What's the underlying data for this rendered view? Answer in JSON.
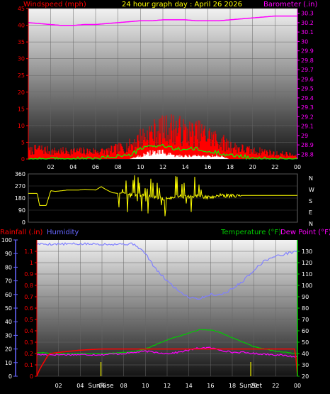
{
  "header": {
    "left_label": "Windspeed (mph)",
    "center_label": "24 hour graph day : April 26 2026",
    "right_label": "Barometer (.in)"
  },
  "direction_labels": [
    "N",
    "W",
    "S",
    "E",
    "N"
  ],
  "bottom_labels": {
    "rainfall": "Rainfall (.in)",
    "humidity": "Humidity",
    "temperature": "Temperature (°F)",
    "dewpoint": "Dew Point (°F)",
    "sunrise": "SunRise",
    "sunset": "SunSet"
  },
  "colors": {
    "wind": "#ff0000",
    "gust": "#ff0000",
    "avg_wind": "#00ff00",
    "barometer": "#ff00ff",
    "direction": "#ffff00",
    "rainfall": "#ff0000",
    "humidity": "#8080ff",
    "temperature": "#00cc00",
    "dewpoint": "#ff00ff",
    "sun_marker": "#c8c800",
    "label_red": "#ff0000",
    "label_yellow": "#ffff00",
    "label_magenta": "#ff00ff",
    "label_blue": "#6666ff",
    "label_green": "#00cc00"
  },
  "chart_data": [
    {
      "type": "line",
      "title": "24 hour graph day : April 26 2026",
      "x_ticks": [
        "02",
        "04",
        "06",
        "08",
        "10",
        "12",
        "14",
        "16",
        "18",
        "20",
        "22",
        "00"
      ],
      "xlim": [
        0,
        24
      ],
      "left_axis": {
        "label": "Windspeed (mph)",
        "ticks": [
          0,
          5,
          10,
          15,
          20,
          25,
          30,
          35,
          40,
          45
        ],
        "ylim": [
          0,
          45
        ]
      },
      "right_axis": {
        "label": "Barometer (.in)",
        "ticks": [
          "28.8",
          "28.9",
          "29",
          "29.1",
          "29.2",
          "29.3",
          "29.4",
          "29.5",
          "29.6",
          "29.7",
          "29.8",
          "29.9",
          "30",
          "30.1",
          "30.2",
          "30.3"
        ],
        "ylim": [
          28.75,
          30.35
        ]
      },
      "series": [
        {
          "name": "Barometer",
          "axis": "right",
          "x": [
            0,
            1,
            2,
            3,
            4,
            5,
            6,
            7,
            8,
            9,
            10,
            11,
            12,
            13,
            14,
            15,
            16,
            17,
            18,
            19,
            20,
            21,
            22,
            23,
            24
          ],
          "y": [
            30.2,
            30.19,
            30.18,
            30.17,
            30.17,
            30.18,
            30.18,
            30.19,
            30.2,
            30.21,
            30.22,
            30.22,
            30.23,
            30.23,
            30.23,
            30.22,
            30.22,
            30.22,
            30.23,
            30.24,
            30.25,
            30.26,
            30.27,
            30.27,
            30.27
          ]
        },
        {
          "name": "Wind gust",
          "axis": "left",
          "x": [
            0,
            1,
            2,
            3,
            4,
            5,
            6,
            7,
            8,
            9,
            10,
            11,
            12,
            13,
            14,
            15,
            16,
            17,
            18,
            19,
            20,
            21,
            22,
            23,
            24
          ],
          "y": [
            3,
            4,
            3,
            3,
            3,
            3,
            3,
            3,
            4,
            5,
            8,
            10,
            11,
            12,
            10,
            10,
            9,
            7,
            5,
            4,
            3,
            3,
            2,
            2,
            1
          ]
        },
        {
          "name": "Average wind",
          "axis": "left",
          "x": [
            0,
            2,
            4,
            6,
            8,
            9,
            10,
            11,
            12,
            13,
            14,
            15,
            16,
            17,
            18,
            19,
            20,
            22,
            24
          ],
          "y": [
            0,
            0,
            0,
            0,
            1,
            1,
            3,
            4,
            4,
            3,
            3,
            3,
            2,
            2,
            1,
            1,
            0,
            0,
            0
          ]
        },
        {
          "name": "Wind lull",
          "axis": "left",
          "x": [
            0,
            8,
            9,
            10,
            11,
            12,
            13,
            14,
            15,
            16,
            17,
            18,
            24
          ],
          "y": [
            0,
            0,
            0,
            1,
            2,
            2,
            1,
            1,
            1,
            1,
            1,
            0,
            0
          ]
        }
      ]
    },
    {
      "type": "line",
      "x_ticks": [
        "02",
        "04",
        "06",
        "08",
        "10",
        "12",
        "14",
        "16",
        "18",
        "20",
        "22",
        "00"
      ],
      "xlim": [
        0,
        24
      ],
      "left_axis": {
        "ticks": [
          0,
          90,
          180,
          270,
          360
        ],
        "ylim": [
          0,
          360
        ]
      },
      "right_axis": {
        "labels": [
          "N",
          "W",
          "S",
          "E",
          "N"
        ]
      },
      "series": [
        {
          "name": "Wind direction",
          "x": [
            0,
            0.8,
            1,
            1.6,
            2,
            2.4,
            3,
            3.5,
            4,
            4.5,
            5,
            6,
            6.5,
            7,
            7.5,
            8,
            8.5,
            9,
            9.5,
            10,
            10.5,
            11,
            11.5,
            12,
            12.5,
            13,
            13.5,
            14,
            15,
            16,
            17,
            18,
            19,
            20,
            22,
            24
          ],
          "y": [
            215,
            215,
            125,
            125,
            235,
            230,
            235,
            240,
            240,
            240,
            245,
            240,
            265,
            240,
            220,
            215,
            220,
            205,
            210,
            200,
            210,
            180,
            185,
            175,
            180,
            190,
            195,
            190,
            195,
            185,
            200,
            195,
            200,
            200,
            200,
            200
          ]
        }
      ]
    },
    {
      "type": "line",
      "x_ticks": [
        "02",
        "04",
        "06",
        "08",
        "10",
        "12",
        "14",
        "16",
        "18",
        "20",
        "22",
        "00"
      ],
      "xlim": [
        0,
        24
      ],
      "left_axes": [
        {
          "label": "Humidity",
          "ticks": [
            0,
            10,
            20,
            30,
            40,
            50,
            60,
            70,
            80,
            90,
            100
          ],
          "ylim": [
            0,
            100
          ]
        },
        {
          "label": "Rainfall (.in)",
          "ticks": [
            "0",
            "0.1",
            "0.2",
            "0.3",
            "0.4",
            "0.5",
            "0.6",
            "0.7",
            "0.8",
            "0.9",
            "1",
            "1.1"
          ],
          "ylim": [
            0,
            1.2
          ]
        }
      ],
      "right_axis": {
        "label": "Temperature (°F)",
        "ticks": [
          20,
          30,
          40,
          50,
          60,
          70,
          80,
          90,
          100,
          110,
          120,
          130
        ],
        "ylim": [
          20,
          140
        ]
      },
      "markers": {
        "sunrise_hour": 5.9,
        "sunset_hour": 19.7
      },
      "series": [
        {
          "name": "Humidity",
          "axis": "humidity",
          "x": [
            0,
            2,
            4,
            6,
            8,
            9,
            10,
            11,
            12,
            13,
            14,
            15,
            16,
            17,
            18,
            19,
            20,
            21,
            22,
            23,
            24
          ],
          "y": [
            97,
            97,
            97,
            97,
            97,
            97,
            90,
            78,
            70,
            63,
            58,
            57,
            60,
            60,
            64,
            70,
            78,
            85,
            88,
            90,
            92
          ]
        },
        {
          "name": "Rainfall",
          "axis": "rainfall",
          "x": [
            0,
            0.2,
            0.5,
            1,
            1.2,
            2,
            3,
            4,
            6,
            8,
            10,
            12,
            14,
            16,
            18,
            20,
            22,
            23,
            23.8,
            24
          ],
          "y": [
            0,
            0.05,
            0.1,
            0.18,
            0.2,
            0.21,
            0.22,
            0.23,
            0.24,
            0.24,
            0.24,
            0.24,
            0.24,
            0.24,
            0.24,
            0.24,
            0.24,
            0.24,
            0.24,
            0
          ]
        },
        {
          "name": "Temperature",
          "axis": "temperature",
          "x": [
            0,
            2,
            4,
            6,
            8,
            9,
            10,
            11,
            12,
            13,
            14,
            15,
            16,
            17,
            18,
            19,
            20,
            21,
            22,
            23,
            24
          ],
          "y": [
            41,
            40,
            40,
            40,
            41,
            42,
            44,
            48,
            52,
            55,
            58,
            61,
            61,
            58,
            54,
            50,
            46,
            44,
            42,
            41,
            40
          ]
        },
        {
          "name": "Dew Point",
          "axis": "temperature",
          "x": [
            0,
            2,
            4,
            6,
            8,
            10,
            11,
            12,
            13,
            14,
            15,
            16,
            17,
            18,
            19,
            20,
            22,
            24
          ],
          "y": [
            39,
            39,
            39,
            39,
            40,
            42,
            41,
            40,
            41,
            43,
            45,
            45,
            43,
            41,
            41,
            40,
            39,
            37
          ]
        }
      ]
    }
  ]
}
